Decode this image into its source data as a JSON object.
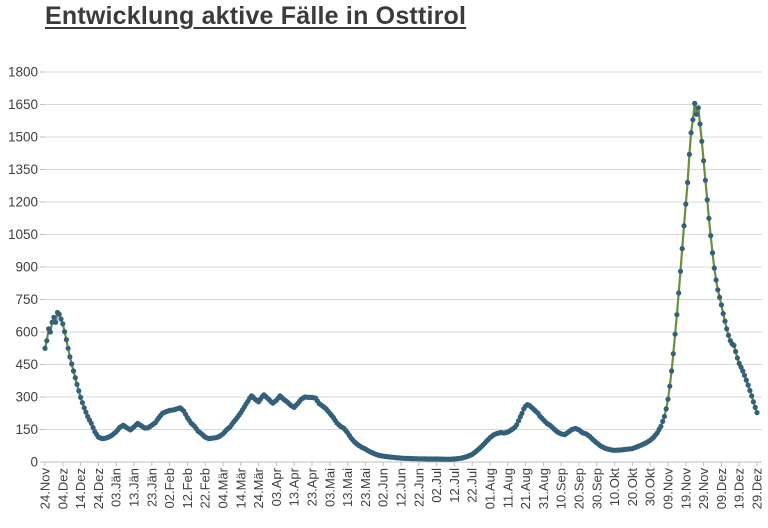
{
  "header": {
    "title": "Entwicklung aktive Fälle in Osttirol"
  },
  "colors": {
    "background": "#ffffff",
    "grid": "#d9d9d9",
    "axis": "#bfbfbf",
    "tick_text": "#404040",
    "title_text": "#3b3b3b",
    "line": "#6a9138",
    "marker": "#33607a"
  },
  "chart_data": {
    "type": "line",
    "title": "Entwicklung aktive Fälle in Osttirol",
    "xlabel": "",
    "ylabel": "",
    "ylim": [
      0,
      1800
    ],
    "y_tick_step": 150,
    "y_tick_labels": [
      "0",
      "150",
      "300",
      "450",
      "600",
      "750",
      "900",
      "1050",
      "1200",
      "1350",
      "1500",
      "1650",
      "1800"
    ],
    "grid": "horizontal",
    "legend_position": "none",
    "x_tick_interval_days": 10,
    "x_tick_labels": [
      "24.Nov",
      "04.Dez",
      "14.Dez",
      "24.Dez",
      "03.Jän",
      "13.Jän",
      "23.Jän",
      "02.Feb",
      "12.Feb",
      "22.Feb",
      "04.Mär",
      "14.Mär",
      "24.Mär",
      "03.Apr",
      "13.Apr",
      "23.Apr",
      "03.Mai",
      "13.Mai",
      "23.Mai",
      "02.Jun",
      "12.Jun",
      "22.Jun",
      "02.Jul",
      "12.Jul",
      "22.Jul",
      "01.Aug",
      "11.Aug",
      "21.Aug",
      "31.Aug",
      "10.Sep",
      "20.Sep",
      "30.Sep",
      "10.Okt",
      "20.Okt",
      "30.Okt",
      "09.Nov",
      "19.Nov",
      "29.Nov",
      "09.Dez",
      "19.Dez",
      "29.Dez"
    ],
    "series": [
      {
        "marker": "circle",
        "interpolation": "daily-linear",
        "points_day_value": [
          [
            0,
            525
          ],
          [
            1,
            560
          ],
          [
            2,
            615
          ],
          [
            3,
            600
          ],
          [
            4,
            645
          ],
          [
            5,
            668
          ],
          [
            6,
            645
          ],
          [
            7,
            690
          ],
          [
            8,
            682
          ],
          [
            9,
            660
          ],
          [
            10,
            638
          ],
          [
            12,
            565
          ],
          [
            14,
            485
          ],
          [
            16,
            420
          ],
          [
            18,
            358
          ],
          [
            20,
            298
          ],
          [
            22,
            250
          ],
          [
            24,
            210
          ],
          [
            26,
            178
          ],
          [
            28,
            140
          ],
          [
            30,
            115
          ],
          [
            32,
            108
          ],
          [
            34,
            110
          ],
          [
            36,
            116
          ],
          [
            38,
            126
          ],
          [
            40,
            140
          ],
          [
            42,
            160
          ],
          [
            44,
            170
          ],
          [
            46,
            158
          ],
          [
            48,
            148
          ],
          [
            50,
            162
          ],
          [
            52,
            178
          ],
          [
            54,
            168
          ],
          [
            56,
            157
          ],
          [
            58,
            158
          ],
          [
            60,
            170
          ],
          [
            62,
            182
          ],
          [
            64,
            205
          ],
          [
            66,
            225
          ],
          [
            68,
            232
          ],
          [
            70,
            238
          ],
          [
            72,
            240
          ],
          [
            74,
            245
          ],
          [
            76,
            250
          ],
          [
            78,
            235
          ],
          [
            80,
            205
          ],
          [
            82,
            180
          ],
          [
            84,
            165
          ],
          [
            86,
            142
          ],
          [
            88,
            130
          ],
          [
            90,
            115
          ],
          [
            92,
            108
          ],
          [
            94,
            110
          ],
          [
            96,
            112
          ],
          [
            98,
            118
          ],
          [
            100,
            130
          ],
          [
            102,
            148
          ],
          [
            104,
            162
          ],
          [
            106,
            185
          ],
          [
            108,
            205
          ],
          [
            110,
            228
          ],
          [
            112,
            255
          ],
          [
            114,
            280
          ],
          [
            115,
            295
          ],
          [
            116,
            305
          ],
          [
            118,
            290
          ],
          [
            120,
            278
          ],
          [
            122,
            302
          ],
          [
            123,
            310
          ],
          [
            125,
            295
          ],
          [
            127,
            278
          ],
          [
            128,
            272
          ],
          [
            130,
            285
          ],
          [
            132,
            305
          ],
          [
            134,
            290
          ],
          [
            136,
            278
          ],
          [
            138,
            262
          ],
          [
            140,
            252
          ],
          [
            142,
            270
          ],
          [
            144,
            290
          ],
          [
            146,
            300
          ],
          [
            148,
            298
          ],
          [
            150,
            298
          ],
          [
            152,
            295
          ],
          [
            154,
            270
          ],
          [
            156,
            258
          ],
          [
            158,
            245
          ],
          [
            160,
            225
          ],
          [
            162,
            205
          ],
          [
            164,
            180
          ],
          [
            166,
            165
          ],
          [
            168,
            155
          ],
          [
            170,
            135
          ],
          [
            172,
            110
          ],
          [
            174,
            92
          ],
          [
            176,
            78
          ],
          [
            178,
            68
          ],
          [
            180,
            60
          ],
          [
            182,
            50
          ],
          [
            184,
            42
          ],
          [
            186,
            35
          ],
          [
            188,
            30
          ],
          [
            190,
            27
          ],
          [
            193,
            24
          ],
          [
            196,
            21
          ],
          [
            200,
            18
          ],
          [
            205,
            16
          ],
          [
            210,
            15
          ],
          [
            215,
            14
          ],
          [
            220,
            14
          ],
          [
            225,
            13
          ],
          [
            228,
            13
          ],
          [
            231,
            15
          ],
          [
            234,
            18
          ],
          [
            237,
            25
          ],
          [
            240,
            35
          ],
          [
            242,
            48
          ],
          [
            244,
            62
          ],
          [
            246,
            78
          ],
          [
            248,
            95
          ],
          [
            250,
            112
          ],
          [
            252,
            125
          ],
          [
            254,
            132
          ],
          [
            256,
            136
          ],
          [
            258,
            134
          ],
          [
            260,
            138
          ],
          [
            262,
            148
          ],
          [
            264,
            160
          ],
          [
            265,
            172
          ],
          [
            266,
            190
          ],
          [
            267,
            208
          ],
          [
            268,
            225
          ],
          [
            269,
            245
          ],
          [
            270,
            258
          ],
          [
            271,
            265
          ],
          [
            272,
            262
          ],
          [
            273,
            255
          ],
          [
            274,
            248
          ],
          [
            275,
            240
          ],
          [
            276,
            232
          ],
          [
            277,
            225
          ],
          [
            278,
            212
          ],
          [
            280,
            195
          ],
          [
            282,
            178
          ],
          [
            284,
            168
          ],
          [
            286,
            152
          ],
          [
            288,
            138
          ],
          [
            290,
            130
          ],
          [
            292,
            126
          ],
          [
            294,
            138
          ],
          [
            296,
            150
          ],
          [
            298,
            155
          ],
          [
            300,
            148
          ],
          [
            302,
            135
          ],
          [
            304,
            130
          ],
          [
            306,
            118
          ],
          [
            308,
            102
          ],
          [
            310,
            88
          ],
          [
            312,
            75
          ],
          [
            314,
            66
          ],
          [
            316,
            60
          ],
          [
            318,
            56
          ],
          [
            320,
            54
          ],
          [
            322,
            55
          ],
          [
            324,
            56
          ],
          [
            326,
            58
          ],
          [
            328,
            60
          ],
          [
            330,
            62
          ],
          [
            332,
            68
          ],
          [
            334,
            75
          ],
          [
            336,
            82
          ],
          [
            338,
            90
          ],
          [
            340,
            100
          ],
          [
            342,
            115
          ],
          [
            344,
            135
          ],
          [
            346,
            165
          ],
          [
            348,
            210
          ],
          [
            349,
            245
          ],
          [
            350,
            290
          ],
          [
            351,
            350
          ],
          [
            352,
            420
          ],
          [
            353,
            500
          ],
          [
            354,
            590
          ],
          [
            355,
            680
          ],
          [
            356,
            780
          ],
          [
            357,
            880
          ],
          [
            358,
            985
          ],
          [
            359,
            1090
          ],
          [
            360,
            1190
          ],
          [
            361,
            1290
          ],
          [
            362,
            1420
          ],
          [
            363,
            1520
          ],
          [
            364,
            1580
          ],
          [
            365,
            1655
          ],
          [
            366,
            1605
          ],
          [
            367,
            1635
          ],
          [
            368,
            1560
          ],
          [
            369,
            1480
          ],
          [
            370,
            1390
          ],
          [
            371,
            1300
          ],
          [
            372,
            1210
          ],
          [
            373,
            1125
          ],
          [
            374,
            1045
          ],
          [
            375,
            965
          ],
          [
            376,
            895
          ],
          [
            377,
            840
          ],
          [
            378,
            795
          ],
          [
            379,
            760
          ],
          [
            380,
            725
          ],
          [
            381,
            685
          ],
          [
            382,
            650
          ],
          [
            383,
            615
          ],
          [
            384,
            585
          ],
          [
            385,
            560
          ],
          [
            386,
            545
          ],
          [
            387,
            538
          ],
          [
            388,
            510
          ],
          [
            389,
            480
          ],
          [
            390,
            455
          ],
          [
            391,
            438
          ],
          [
            392,
            420
          ],
          [
            393,
            400
          ],
          [
            394,
            378
          ],
          [
            395,
            355
          ],
          [
            396,
            330
          ],
          [
            397,
            305
          ],
          [
            398,
            278
          ],
          [
            399,
            252
          ],
          [
            400,
            228
          ]
        ]
      }
    ]
  }
}
